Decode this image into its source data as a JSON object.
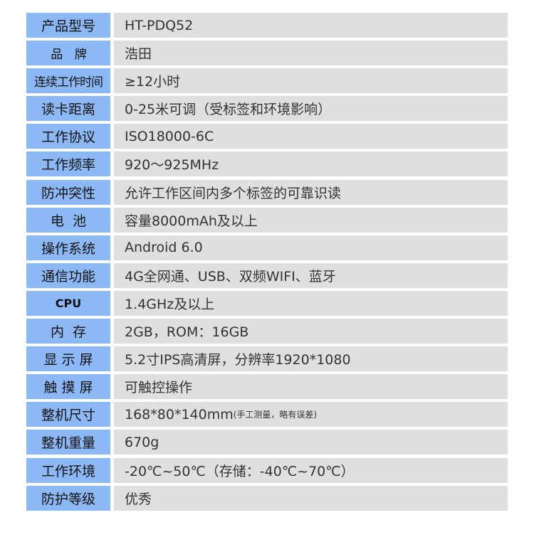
{
  "colors": {
    "label_bg": "#8cb9f5",
    "value_bg": "#dfdfdf"
  },
  "rows": [
    {
      "label": "产品型号",
      "value": "HT-PDQ52"
    },
    {
      "label": "品    牌",
      "value": "浩田"
    },
    {
      "label": "连续工作时间",
      "value": "≥12小时"
    },
    {
      "label": "读卡距离",
      "value": "0-25米可调（受标签和环境影响）"
    },
    {
      "label": "工作协议",
      "value": "ISO18000-6C"
    },
    {
      "label": "工作频率",
      "value": "920～925MHz"
    },
    {
      "label": "防冲突性",
      "value": "允许工作区间内多个标签的可靠识读"
    },
    {
      "label": "电  池",
      "value": "容量8000mAh及以上"
    },
    {
      "label": "操作系统",
      "value": "Android 6.0"
    },
    {
      "label": "通信功能",
      "value": "4G全网通、USB、双频WIFI、蓝牙"
    },
    {
      "label": "CPU",
      "value": "1.4GHz及以上"
    },
    {
      "label": "内  存",
      "value": "2GB，ROM：16GB"
    },
    {
      "label": "显 示 屏",
      "value": "5.2寸IPS高清屏，分辨率1920*1080"
    },
    {
      "label": "触 摸 屏",
      "value": "可触控操作"
    },
    {
      "label": "整机尺寸",
      "value": "168*80*140mm",
      "note": "(手工测量，略有误差)"
    },
    {
      "label": "整机重量",
      "value": "670g"
    },
    {
      "label": "工作环境",
      "value": "-20℃~50℃（存储：-40℃~70℃）"
    },
    {
      "label": "防护等级",
      "value": "优秀"
    }
  ]
}
